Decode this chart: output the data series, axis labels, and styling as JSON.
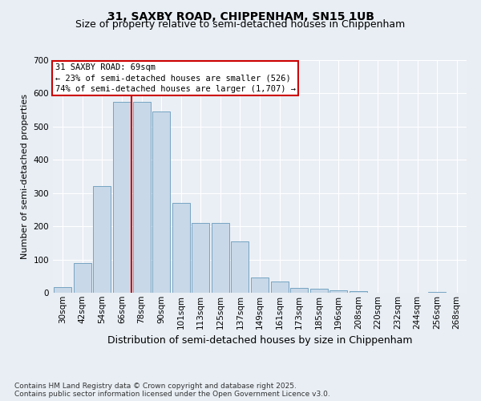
{
  "title_line1": "31, SAXBY ROAD, CHIPPENHAM, SN15 1UB",
  "title_line2": "Size of property relative to semi-detached houses in Chippenham",
  "xlabel": "Distribution of semi-detached houses by size in Chippenham",
  "ylabel": "Number of semi-detached properties",
  "categories": [
    "30sqm",
    "42sqm",
    "54sqm",
    "66sqm",
    "78sqm",
    "90sqm",
    "101sqm",
    "113sqm",
    "125sqm",
    "137sqm",
    "149sqm",
    "161sqm",
    "173sqm",
    "185sqm",
    "196sqm",
    "208sqm",
    "220sqm",
    "232sqm",
    "244sqm",
    "256sqm",
    "268sqm"
  ],
  "values": [
    18,
    90,
    320,
    575,
    575,
    545,
    270,
    210,
    210,
    155,
    45,
    35,
    15,
    12,
    8,
    5,
    0,
    0,
    0,
    2,
    0
  ],
  "bar_color": "#c8d8e8",
  "bar_edge_color": "#6699bb",
  "vline_x_index": 3,
  "vline_color": "#cc0000",
  "annotation_text": "31 SAXBY ROAD: 69sqm\n← 23% of semi-detached houses are smaller (526)\n74% of semi-detached houses are larger (1,707) →",
  "annotation_box_color": "#ffffff",
  "annotation_box_edge": "#cc0000",
  "ylim": [
    0,
    700
  ],
  "yticks": [
    0,
    100,
    200,
    300,
    400,
    500,
    600,
    700
  ],
  "background_color": "#e8eef4",
  "plot_bg_color": "#eaeff5",
  "grid_color": "#ffffff",
  "footer_text": "Contains HM Land Registry data © Crown copyright and database right 2025.\nContains public sector information licensed under the Open Government Licence v3.0.",
  "title_fontsize": 10,
  "subtitle_fontsize": 9,
  "axis_label_fontsize": 9,
  "ylabel_fontsize": 8,
  "tick_fontsize": 7.5,
  "annotation_fontsize": 7.5,
  "footer_fontsize": 6.5
}
